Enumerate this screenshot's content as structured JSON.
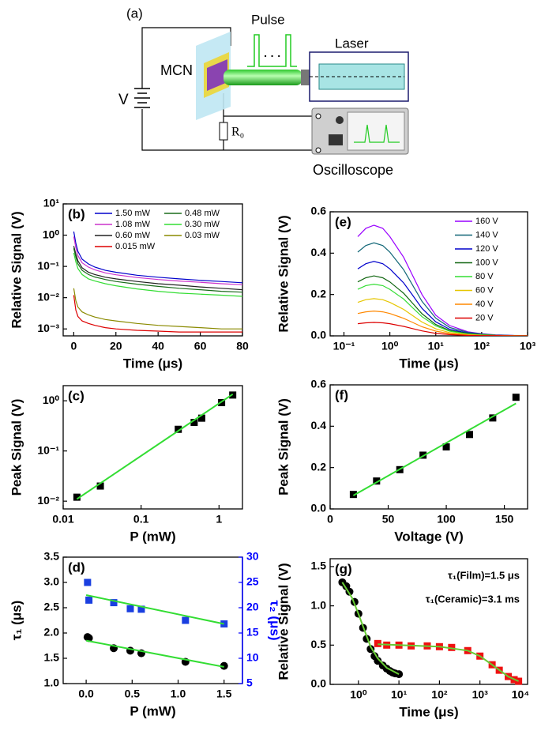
{
  "diagram": {
    "label": "(a)",
    "pulse": "Pulse",
    "dots": "· · ·",
    "laser": "Laser",
    "sample": "MCN",
    "voltage": "V",
    "resistor": "R₀",
    "scope": "Oscilloscope"
  },
  "chart_data": [
    {
      "type": "line",
      "label": "(b)",
      "xlabel": "Time (μs)",
      "ylabel": "Relative Signal (V)",
      "yscale": "log",
      "xlim": [
        -5,
        80
      ],
      "xticks": [
        0,
        20,
        40,
        60,
        80
      ],
      "ylim": [
        0.0006,
        10
      ],
      "yticks": [
        {
          "value": 0.001,
          "label": "10⁻³"
        },
        {
          "value": 0.01,
          "label": "10⁻²"
        },
        {
          "value": 0.1,
          "label": "10⁻¹"
        },
        {
          "value": 1,
          "label": "10⁰"
        },
        {
          "value": 10,
          "label": "10¹"
        }
      ],
      "legend": "upper right",
      "legend_columns": 2,
      "x": [
        0,
        1,
        2,
        4,
        7,
        10,
        15,
        20,
        30,
        40,
        50,
        60,
        70,
        80
      ],
      "series": [
        {
          "name": "1.50 mW",
          "color": "#0000cc",
          "values": [
            1.3,
            0.55,
            0.3,
            0.17,
            0.12,
            0.095,
            0.075,
            0.065,
            0.052,
            0.045,
            0.04,
            0.036,
            0.033,
            0.03
          ]
        },
        {
          "name": "1.08 mW",
          "color": "#cc33cc",
          "values": [
            0.9,
            0.4,
            0.22,
            0.13,
            0.095,
            0.078,
            0.062,
            0.054,
            0.044,
            0.038,
            0.034,
            0.031,
            0.028,
            0.026
          ]
        },
        {
          "name": "0.60 mW",
          "color": "#222222",
          "values": [
            0.45,
            0.25,
            0.15,
            0.09,
            0.065,
            0.055,
            0.045,
            0.04,
            0.033,
            0.028,
            0.025,
            0.022,
            0.02,
            0.018
          ]
        },
        {
          "name": "0.015 mW",
          "color": "#dd0000",
          "values": [
            0.012,
            0.004,
            0.0025,
            0.0018,
            0.0015,
            0.0013,
            0.0011,
            0.001,
            0.0009,
            0.00085,
            0.0008,
            0.0008,
            0.0008,
            0.0008
          ]
        },
        {
          "name": "0.48 mW",
          "color": "#1a6b1a",
          "values": [
            0.38,
            0.2,
            0.12,
            0.075,
            0.055,
            0.046,
            0.038,
            0.033,
            0.027,
            0.023,
            0.02,
            0.018,
            0.016,
            0.015
          ]
        },
        {
          "name": "0.30 mW",
          "color": "#33dd33",
          "values": [
            0.27,
            0.14,
            0.085,
            0.055,
            0.04,
            0.034,
            0.028,
            0.024,
            0.019,
            0.016,
            0.014,
            0.013,
            0.012,
            0.011
          ]
        },
        {
          "name": "0.03 mW",
          "color": "#8a8a00",
          "values": [
            0.02,
            0.008,
            0.005,
            0.0035,
            0.0028,
            0.0024,
            0.002,
            0.0018,
            0.0015,
            0.0013,
            0.0012,
            0.0011,
            0.001,
            0.001
          ]
        }
      ]
    },
    {
      "type": "scatter",
      "label": "(c)",
      "xlabel": "P  (mW)",
      "ylabel": "Peak Signal (V)",
      "xscale": "log",
      "yscale": "log",
      "xlim": [
        0.01,
        2
      ],
      "xticks": [
        0.01,
        0.1,
        1
      ],
      "ylim": [
        0.007,
        2
      ],
      "yticks": [
        {
          "value": 0.01,
          "label": "10⁻²"
        },
        {
          "value": 0.1,
          "label": "10⁻¹"
        },
        {
          "value": 1,
          "label": "10⁰"
        }
      ],
      "series": [
        {
          "mode": "markers",
          "marker": "square",
          "color": "#000000",
          "x": [
            0.015,
            0.03,
            0.3,
            0.48,
            0.6,
            1.08,
            1.5
          ],
          "values": [
            0.012,
            0.02,
            0.27,
            0.37,
            0.45,
            0.92,
            1.3
          ]
        },
        {
          "mode": "line",
          "color": "#33dd33",
          "x": [
            0.015,
            1.5
          ],
          "values": [
            0.011,
            1.35
          ]
        }
      ]
    },
    {
      "type": "scatter",
      "label": "(d)",
      "xlabel": "P  (mW)",
      "ylabel": "τ₁ (μs)",
      "y2label": "τ₂ (μs)",
      "y2color": "#0000ff",
      "xlim": [
        -0.25,
        1.7
      ],
      "xticks": [
        {
          "value": 0,
          "label": "0.0"
        },
        0.5,
        {
          "value": 1,
          "label": "1.0"
        },
        1.5
      ],
      "ylim": [
        1,
        3.5
      ],
      "yticks": [
        {
          "value": 1,
          "label": "1.0"
        },
        1.5,
        {
          "value": 2,
          "label": "2.0"
        },
        2.5,
        {
          "value": 3,
          "label": "3.0"
        },
        3.5
      ],
      "y2lim": [
        5,
        30
      ],
      "y2ticks": [
        5,
        10,
        15,
        20,
        25,
        30
      ],
      "series": [
        {
          "mode": "markers",
          "marker": "circle",
          "color": "#000000",
          "x": [
            0.015,
            0.03,
            0.3,
            0.48,
            0.6,
            1.08,
            1.5
          ],
          "values": [
            1.92,
            1.9,
            1.7,
            1.65,
            1.6,
            1.43,
            1.35
          ]
        },
        {
          "mode": "markers",
          "marker": "square",
          "color": "#1a3fe0",
          "axis": "y2",
          "x": [
            0.015,
            0.03,
            0.3,
            0.48,
            0.6,
            1.08,
            1.5
          ],
          "values": [
            25,
            21.5,
            21,
            19.8,
            19.7,
            17.5,
            16.8
          ]
        },
        {
          "mode": "line",
          "color": "#33dd33",
          "x": [
            0,
            1.5
          ],
          "values": [
            1.85,
            1.33
          ]
        },
        {
          "mode": "line",
          "color": "#33dd33",
          "axis": "y2",
          "x": [
            0,
            1.5
          ],
          "values": [
            22.5,
            16.8
          ]
        }
      ]
    },
    {
      "type": "line",
      "label": "(e)",
      "xlabel": "Time (μs)",
      "ylabel": "Relative Signal (V)",
      "xscale": "log",
      "xlim": [
        0.05,
        1000
      ],
      "xticks": [
        {
          "value": 0.1,
          "label": "10⁻¹"
        },
        {
          "value": 1,
          "label": "10⁰"
        },
        {
          "value": 10,
          "label": "10¹"
        },
        {
          "value": 100,
          "label": "10²"
        },
        {
          "value": 1000,
          "label": "10³"
        }
      ],
      "ylim": [
        0,
        0.6
      ],
      "yticks": [
        {
          "value": 0,
          "label": "0.0"
        },
        0.2,
        0.4,
        0.6
      ],
      "legend": "upper right",
      "legend_columns": 1,
      "x": [
        0.2,
        0.3,
        0.45,
        0.7,
        1,
        2,
        3,
        5,
        10,
        20,
        50,
        100,
        200,
        500,
        1000
      ],
      "series": [
        {
          "name": "160 V",
          "color": "#9900ff",
          "values": [
            0.48,
            0.52,
            0.535,
            0.52,
            0.48,
            0.38,
            0.3,
            0.2,
            0.1,
            0.05,
            0.02,
            0.01,
            0.005,
            0.002,
            0.001
          ]
        },
        {
          "name": "140 V",
          "color": "#116677",
          "values": [
            0.405,
            0.437,
            0.45,
            0.437,
            0.405,
            0.32,
            0.252,
            0.167,
            0.086,
            0.041,
            0.017,
            0.009,
            0.004,
            0.002,
            0.001
          ]
        },
        {
          "name": "120 V",
          "color": "#0000cc",
          "values": [
            0.324,
            0.349,
            0.36,
            0.349,
            0.324,
            0.256,
            0.202,
            0.133,
            0.068,
            0.032,
            0.013,
            0.007,
            0.003,
            0.001,
            0.001
          ]
        },
        {
          "name": "100 V",
          "color": "#116611",
          "values": [
            0.261,
            0.281,
            0.29,
            0.281,
            0.261,
            0.206,
            0.162,
            0.107,
            0.055,
            0.026,
            0.011,
            0.006,
            0.003,
            0.001,
            0.001
          ]
        },
        {
          "name": "80 V",
          "color": "#33dd33",
          "values": [
            0.225,
            0.243,
            0.25,
            0.243,
            0.225,
            0.178,
            0.14,
            0.093,
            0.048,
            0.023,
            0.009,
            0.005,
            0.002,
            0.001,
            0.001
          ]
        },
        {
          "name": "60 V",
          "color": "#e6c600",
          "values": [
            0.162,
            0.175,
            0.18,
            0.175,
            0.162,
            0.128,
            0.101,
            0.067,
            0.034,
            0.016,
            0.007,
            0.003,
            0.002,
            0.001,
            0
          ]
        },
        {
          "name": "40 V",
          "color": "#ff8800",
          "values": [
            0.108,
            0.116,
            0.12,
            0.116,
            0.108,
            0.085,
            0.067,
            0.044,
            0.023,
            0.011,
            0.004,
            0.002,
            0.001,
            0,
            0
          ]
        },
        {
          "name": "20 V",
          "color": "#dd0000",
          "values": [
            0.059,
            0.063,
            0.065,
            0.063,
            0.059,
            0.046,
            0.036,
            0.024,
            0.012,
            0.006,
            0.002,
            0.001,
            0.001,
            0,
            0
          ]
        }
      ]
    },
    {
      "type": "scatter",
      "label": "(f)",
      "xlabel": "Voltage (V)",
      "ylabel": "Peak Signal (V)",
      "xlim": [
        0,
        170
      ],
      "xticks": [
        0,
        50,
        100,
        150
      ],
      "ylim": [
        0,
        0.6
      ],
      "yticks": [
        {
          "value": 0,
          "label": "0.0"
        },
        0.2,
        0.4,
        0.6
      ],
      "series": [
        {
          "mode": "markers",
          "marker": "square",
          "color": "#000000",
          "x": [
            20,
            40,
            60,
            80,
            100,
            120,
            140,
            160
          ],
          "values": [
            0.07,
            0.135,
            0.19,
            0.26,
            0.3,
            0.36,
            0.44,
            0.54
          ]
        },
        {
          "mode": "line",
          "color": "#33dd33",
          "x": [
            20,
            160
          ],
          "values": [
            0.065,
            0.51
          ]
        }
      ]
    },
    {
      "type": "scatter",
      "label": "(g)",
      "xlabel": "Time (μs)",
      "ylabel": "Relative Signal (V)",
      "xscale": "log",
      "xlim": [
        0.2,
        15000
      ],
      "xticks": [
        {
          "value": 1,
          "label": "10⁰"
        },
        {
          "value": 10,
          "label": "10¹"
        },
        {
          "value": 100,
          "label": "10²"
        },
        {
          "value": 1000,
          "label": "10³"
        },
        {
          "value": 10000,
          "label": "10⁴"
        }
      ],
      "ylim": [
        0,
        1.6
      ],
      "yticks": [
        {
          "value": 0,
          "label": "0.0"
        },
        0.5,
        {
          "value": 1,
          "label": "1.0"
        },
        1.5
      ],
      "annotations": [
        "τ₁(Film)=1.5 μs",
        "τ₁(Ceramic)=3.1 ms"
      ],
      "series": [
        {
          "mode": "markers",
          "marker": "circle",
          "color": "#000000",
          "x": [
            0.4,
            0.5,
            0.6,
            0.8,
            1,
            1.3,
            1.6,
            2,
            2.5,
            3,
            4,
            5,
            6,
            7,
            8,
            10
          ],
          "values": [
            1.3,
            1.25,
            1.18,
            1.05,
            0.9,
            0.72,
            0.58,
            0.45,
            0.36,
            0.3,
            0.24,
            0.2,
            0.17,
            0.15,
            0.14,
            0.13
          ]
        },
        {
          "mode": "markers",
          "marker": "square",
          "color": "#ee1111",
          "x": [
            3,
            5,
            10,
            20,
            50,
            100,
            200,
            500,
            1000,
            2000,
            3000,
            5000,
            7000,
            9000
          ],
          "values": [
            0.52,
            0.5,
            0.5,
            0.49,
            0.49,
            0.48,
            0.47,
            0.43,
            0.36,
            0.25,
            0.18,
            0.1,
            0.06,
            0.04
          ]
        },
        {
          "mode": "line",
          "color": "#66cc33",
          "x": [
            0.4,
            0.7,
            1,
            1.5,
            2,
            3,
            5,
            10
          ],
          "values": [
            1.3,
            1.1,
            0.9,
            0.65,
            0.48,
            0.33,
            0.21,
            0.13
          ]
        },
        {
          "mode": "line",
          "color": "#66cc33",
          "x": [
            3,
            10,
            100,
            500,
            1000,
            2000,
            5000,
            9000
          ],
          "values": [
            0.51,
            0.5,
            0.48,
            0.43,
            0.36,
            0.25,
            0.1,
            0.04
          ]
        }
      ]
    }
  ]
}
